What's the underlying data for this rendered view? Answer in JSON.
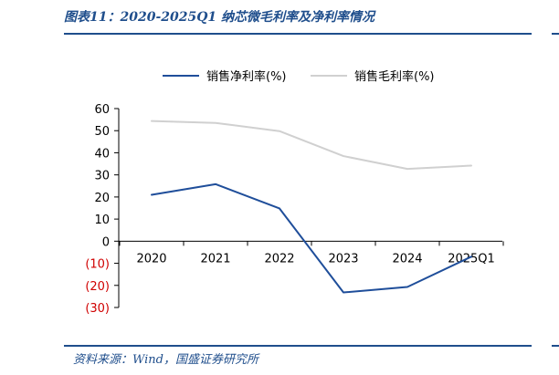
{
  "header": {
    "title": "图表11：2020-2025Q1 纳芯微毛利率及净利率情况"
  },
  "footer": {
    "source": "资料来源：Wind，国盛证券研究所"
  },
  "colors": {
    "brand": "#1f4e8c",
    "negative_tick": "#d00000"
  },
  "chart_data": {
    "type": "line",
    "title": "",
    "xlabel": "",
    "ylabel": "",
    "categories": [
      "2020",
      "2021",
      "2022",
      "2023",
      "2024",
      "2025Q1"
    ],
    "ylim": [
      -30,
      60
    ],
    "yticks": [
      60,
      50,
      40,
      30,
      20,
      10,
      0,
      -10,
      -20,
      -30
    ],
    "ytick_labels": [
      "60",
      "50",
      "40",
      "30",
      "20",
      "10",
      "0",
      "(10)",
      "(20)",
      "(30)"
    ],
    "legend_position": "top",
    "grid": false,
    "series": [
      {
        "name": "销售净利率(%)",
        "color": "#1f4e9a",
        "values": [
          21.0,
          25.8,
          14.8,
          -23.2,
          -20.7,
          -7.0
        ]
      },
      {
        "name": "销售毛利率(%)",
        "color": "#d0d0d0",
        "values": [
          54.4,
          53.5,
          49.8,
          38.5,
          32.7,
          34.2
        ]
      }
    ]
  }
}
